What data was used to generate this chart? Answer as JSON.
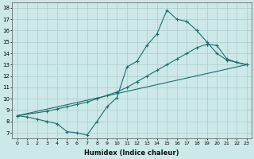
{
  "title": "",
  "xlabel": "Humidex (Indice chaleur)",
  "xlim": [
    -0.5,
    23.5
  ],
  "ylim": [
    6.5,
    18.5
  ],
  "xticks": [
    0,
    1,
    2,
    3,
    4,
    5,
    6,
    7,
    8,
    9,
    10,
    11,
    12,
    13,
    14,
    15,
    16,
    17,
    18,
    19,
    20,
    21,
    22,
    23
  ],
  "yticks": [
    7,
    8,
    9,
    10,
    11,
    12,
    13,
    14,
    15,
    16,
    17,
    18
  ],
  "bg_color": "#cce8e8",
  "grid_color": "#aacccc",
  "line_color": "#1a6e6e",
  "line1_x": [
    0,
    1,
    2,
    3,
    4,
    5,
    6,
    7,
    8,
    9,
    10,
    11,
    12,
    13,
    14,
    15,
    16,
    17,
    18,
    19,
    20,
    21,
    22,
    23
  ],
  "line1_y": [
    8.5,
    8.4,
    8.2,
    8.0,
    7.8,
    7.1,
    7.0,
    6.8,
    8.0,
    9.3,
    10.1,
    12.8,
    13.3,
    14.7,
    15.7,
    17.8,
    17.0,
    16.8,
    16.0,
    15.0,
    14.0,
    13.4,
    13.2,
    13.0
  ],
  "line2_x": [
    0,
    3,
    4,
    5,
    6,
    7,
    8,
    9,
    10,
    11,
    12,
    13,
    14,
    15,
    16,
    17,
    18,
    19,
    20,
    21,
    22,
    23
  ],
  "line2_y": [
    8.5,
    8.9,
    9.1,
    9.3,
    9.5,
    9.7,
    10.0,
    10.3,
    10.6,
    11.0,
    11.5,
    12.0,
    12.5,
    13.0,
    13.5,
    14.0,
    14.5,
    14.8,
    14.7,
    13.5,
    13.2,
    13.0
  ],
  "line3_x": [
    0,
    23
  ],
  "line3_y": [
    8.5,
    13.0
  ]
}
